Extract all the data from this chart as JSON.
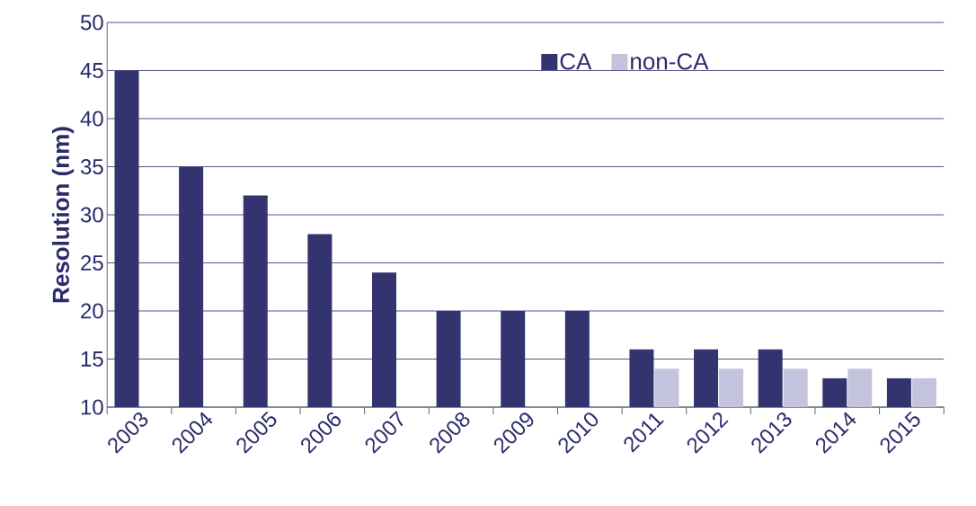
{
  "chart_data": {
    "type": "bar",
    "ylabel": "Resolution (nm)",
    "categories": [
      "2003",
      "2004",
      "2005",
      "2006",
      "2007",
      "2008",
      "2009",
      "2010",
      "2011",
      "2012",
      "2013",
      "2014",
      "2015"
    ],
    "series": [
      {
        "name": "CA",
        "color": "#333370",
        "values": [
          45,
          35,
          32,
          28,
          24,
          20,
          20,
          20,
          16,
          16,
          16,
          13,
          13
        ]
      },
      {
        "name": "non-CA",
        "color": "#c3c3dd",
        "values": [
          null,
          null,
          null,
          null,
          null,
          null,
          null,
          null,
          14,
          14,
          14,
          14,
          13
        ]
      }
    ],
    "ylim": [
      10,
      50
    ],
    "yticks": [
      10,
      15,
      20,
      25,
      30,
      35,
      40,
      45,
      50
    ],
    "grid": "y",
    "legend": "top"
  }
}
